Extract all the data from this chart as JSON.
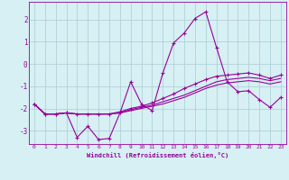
{
  "xlabel": "Windchill (Refroidissement éolien,°C)",
  "background_color": "#d6f0f4",
  "grid_color": "#aaccd4",
  "line_color": "#990099",
  "xlim": [
    -0.5,
    23.5
  ],
  "ylim": [
    -3.6,
    2.8
  ],
  "yticks": [
    -3,
    -2,
    -1,
    0,
    1,
    2
  ],
  "xticks": [
    0,
    1,
    2,
    3,
    4,
    5,
    6,
    7,
    8,
    9,
    10,
    11,
    12,
    13,
    14,
    15,
    16,
    17,
    18,
    19,
    20,
    21,
    22,
    23
  ],
  "hours": [
    0,
    1,
    2,
    3,
    4,
    5,
    6,
    7,
    8,
    9,
    10,
    11,
    12,
    13,
    14,
    15,
    16,
    17,
    18,
    19,
    20,
    21,
    22,
    23
  ],
  "line1": [
    -1.8,
    -2.25,
    -2.25,
    -2.2,
    -3.3,
    -2.8,
    -3.4,
    -3.35,
    -2.2,
    -0.8,
    -1.8,
    -2.1,
    -0.4,
    0.95,
    1.4,
    2.05,
    2.35,
    0.75,
    -0.8,
    -1.25,
    -1.2,
    -1.6,
    -1.95,
    -1.5
  ],
  "line2": [
    -1.8,
    -2.25,
    -2.25,
    -2.2,
    -2.25,
    -2.25,
    -2.25,
    -2.25,
    -2.15,
    -2.0,
    -1.9,
    -1.75,
    -1.55,
    -1.35,
    -1.1,
    -0.9,
    -0.7,
    -0.55,
    -0.5,
    -0.45,
    -0.4,
    -0.5,
    -0.65,
    -0.5
  ],
  "line3": [
    -1.8,
    -2.25,
    -2.25,
    -2.2,
    -2.25,
    -2.25,
    -2.25,
    -2.25,
    -2.2,
    -2.05,
    -1.95,
    -1.85,
    -1.7,
    -1.55,
    -1.4,
    -1.2,
    -1.0,
    -0.8,
    -0.7,
    -0.65,
    -0.6,
    -0.65,
    -0.75,
    -0.65
  ],
  "line4": [
    -1.8,
    -2.25,
    -2.25,
    -2.2,
    -2.25,
    -2.25,
    -2.25,
    -2.25,
    -2.2,
    -2.1,
    -2.0,
    -1.9,
    -1.8,
    -1.65,
    -1.5,
    -1.3,
    -1.1,
    -0.95,
    -0.85,
    -0.8,
    -0.75,
    -0.8,
    -0.9,
    -0.8
  ]
}
